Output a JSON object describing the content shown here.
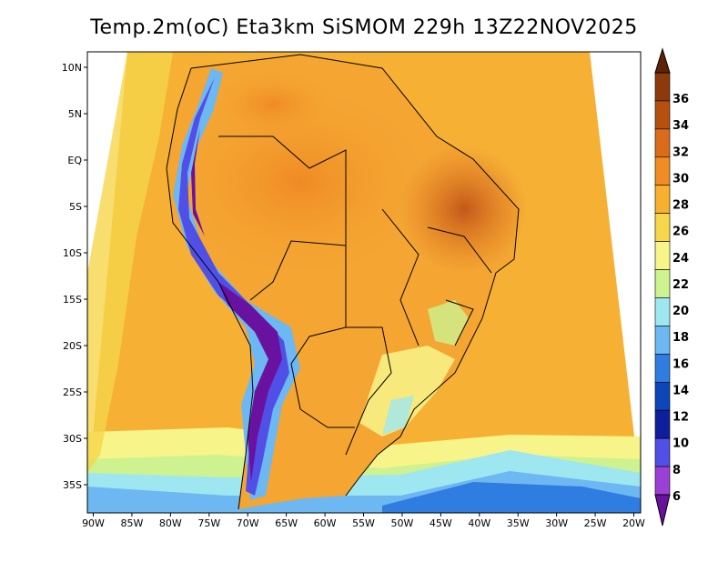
{
  "title": "Temp.2m(oC) Eta3km SiSMOM 229h 13Z22NOV2025",
  "map": {
    "lon_labels": [
      "90W",
      "85W",
      "80W",
      "75W",
      "70W",
      "65W",
      "60W",
      "55W",
      "50W",
      "45W",
      "40W",
      "35W",
      "30W",
      "25W",
      "20W"
    ],
    "lat_labels": [
      "10N",
      "5N",
      "EQ",
      "5S",
      "10S",
      "15S",
      "20S",
      "25S",
      "30S",
      "35S"
    ]
  },
  "colorbar": {
    "labels": [
      "36",
      "34",
      "32",
      "30",
      "28",
      "26",
      "24",
      "22",
      "20",
      "18",
      "16",
      "14",
      "12",
      "10",
      "8",
      "6"
    ],
    "colors": [
      "#5e2206",
      "#8c3a0c",
      "#b5500f",
      "#d96c1a",
      "#ef8c22",
      "#f7b02f",
      "#f6d64a",
      "#f7f48a",
      "#cdf28f",
      "#9ee7f0",
      "#6db8f2",
      "#2f7de0",
      "#0c46b8",
      "#0d1f9c",
      "#5050e6",
      "#9a40d4",
      "#6a12a0"
    ]
  }
}
